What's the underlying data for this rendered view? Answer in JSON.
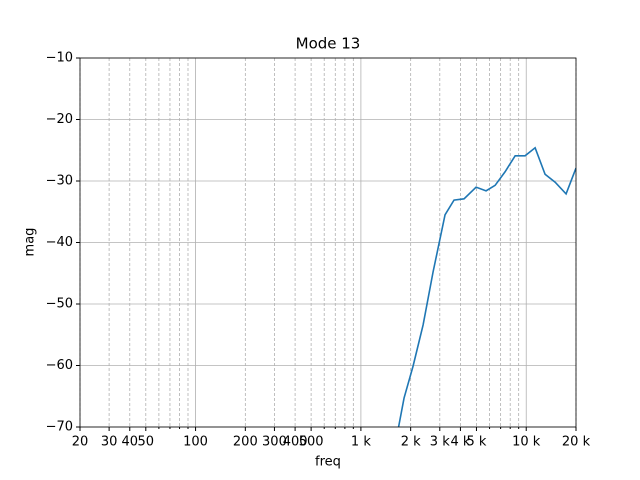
{
  "chart_data": {
    "type": "line",
    "title": "Mode 13",
    "xlabel": "freq",
    "ylabel": "mag",
    "log_x": true,
    "grid": true,
    "xlim": [
      20,
      20000
    ],
    "ylim": [
      -70,
      -10
    ],
    "xticks": [
      20,
      30,
      40,
      50,
      100,
      200,
      300,
      400,
      500,
      {
        "value": 1000,
        "label": "1 k"
      },
      {
        "value": 2000,
        "label": "2 k"
      },
      {
        "value": 3000,
        "label": "3 k"
      },
      {
        "value": 4000,
        "label": "4 k"
      },
      {
        "value": 5000,
        "label": "5 k"
      },
      {
        "value": 10000,
        "label": "10 k"
      },
      {
        "value": 20000,
        "label": "20 k"
      }
    ],
    "xminor": [
      60,
      70,
      80,
      90,
      600,
      700,
      800,
      900,
      6000,
      7000,
      8000,
      9000
    ],
    "yticks": [
      {
        "value": -70,
        "label": "−70"
      },
      {
        "value": -60,
        "label": "−60"
      },
      {
        "value": -50,
        "label": "−50"
      },
      {
        "value": -40,
        "label": "−40"
      },
      {
        "value": -30,
        "label": "−30"
      },
      {
        "value": -20,
        "label": "−20"
      },
      {
        "value": -10,
        "label": "−10"
      }
    ],
    "x": [
      1690,
      1824,
      2068,
      2378,
      2732,
      3228,
      3658,
      4206,
      4974,
      5716,
      6486,
      7450,
      8570,
      9840,
      11320,
      13000,
      14960,
      17420,
      20000
    ],
    "series": [
      {
        "color": "#1f77b4",
        "values": [
          -70,
          -65.3,
          -60.1,
          -53.4,
          -44.8,
          -35.5,
          -33.1,
          -32.9,
          -31.0,
          -31.6,
          -30.7,
          -28.5,
          -25.9,
          -25.9,
          -24.6,
          -28.9,
          -30.2,
          -32.1,
          -27.9
        ]
      }
    ]
  }
}
